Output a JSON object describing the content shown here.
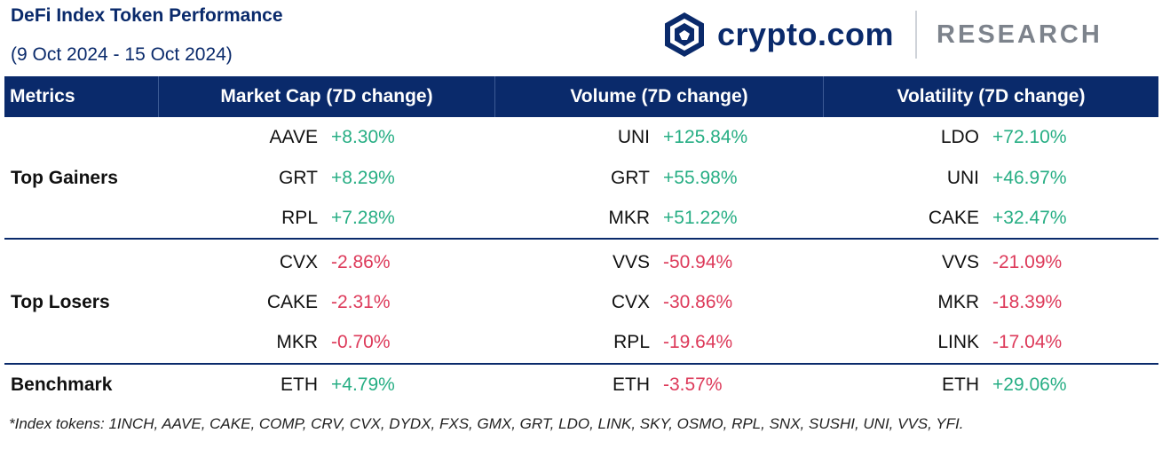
{
  "title": "DeFi Index Token Performance",
  "subtitle": "(9 Oct 2024 - 15 Oct 2024)",
  "brand": {
    "name": "crypto.com",
    "research": "RESEARCH"
  },
  "headers": [
    "Metrics",
    "Market Cap (7D change)",
    "Volume (7D change)",
    "Volatility (7D change)"
  ],
  "sections": [
    {
      "label": "Top Gainers",
      "rows": [
        [
          {
            "token": "AAVE",
            "change": "+8.30%"
          },
          {
            "token": "UNI",
            "change": "+125.84%"
          },
          {
            "token": "LDO",
            "change": "+72.10%"
          }
        ],
        [
          {
            "token": "GRT",
            "change": "+8.29%"
          },
          {
            "token": "GRT",
            "change": "+55.98%"
          },
          {
            "token": "UNI",
            "change": "+46.97%"
          }
        ],
        [
          {
            "token": "RPL",
            "change": "+7.28%"
          },
          {
            "token": "MKR",
            "change": "+51.22%"
          },
          {
            "token": "CAKE",
            "change": "+32.47%"
          }
        ]
      ]
    },
    {
      "label": "Top Losers",
      "rows": [
        [
          {
            "token": "CVX",
            "change": "-2.86%"
          },
          {
            "token": "VVS",
            "change": "-50.94%"
          },
          {
            "token": "VVS",
            "change": "-21.09%"
          }
        ],
        [
          {
            "token": "CAKE",
            "change": "-2.31%"
          },
          {
            "token": "CVX",
            "change": "-30.86%"
          },
          {
            "token": "MKR",
            "change": "-18.39%"
          }
        ],
        [
          {
            "token": "MKR",
            "change": "-0.70%"
          },
          {
            "token": "RPL",
            "change": "-19.64%"
          },
          {
            "token": "LINK",
            "change": "-17.04%"
          }
        ]
      ]
    },
    {
      "label": "Benchmark",
      "rows": [
        [
          {
            "token": "ETH",
            "change": "+4.79%"
          },
          {
            "token": "ETH",
            "change": "-3.57%"
          },
          {
            "token": "ETH",
            "change": "+29.06%"
          }
        ]
      ]
    }
  ],
  "footnote": "*Index tokens: 1INCH, AAVE, CAKE, COMP, CRV, CVX, DYDX, FXS, GMX, GRT, LDO, LINK, SKY, OSMO, RPL, SNX, SUSHI, UNI, VVS, YFI.",
  "colors": {
    "navy": "#0a2a6b",
    "positive": "#27ae84",
    "negative": "#dd3a5a"
  }
}
